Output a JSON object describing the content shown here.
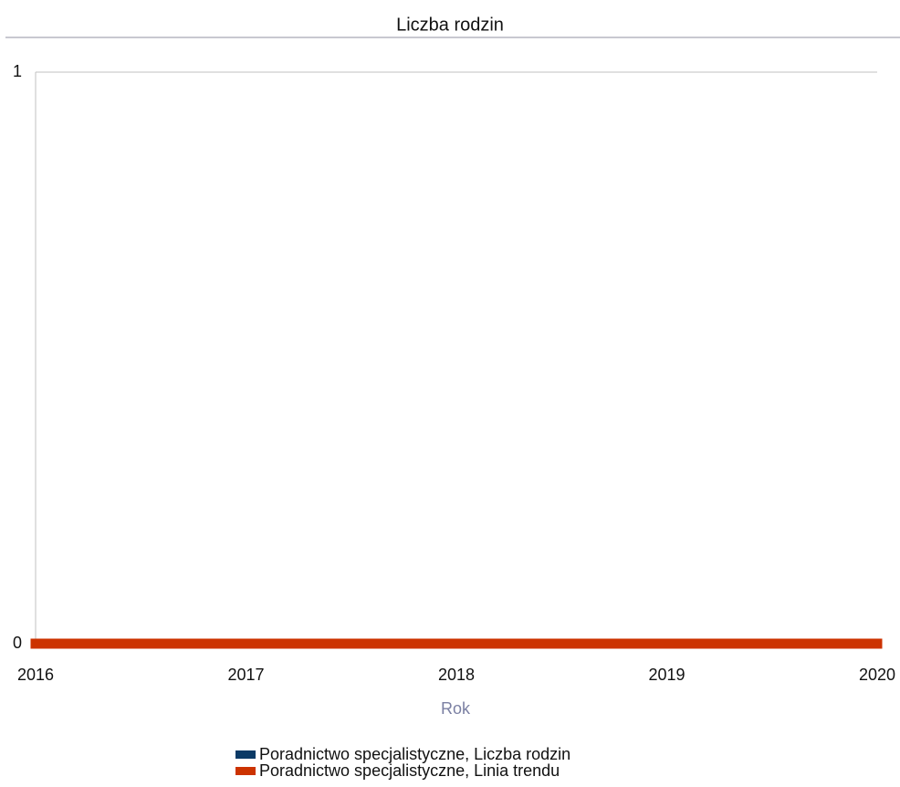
{
  "chart_data": {
    "type": "line",
    "title": "Liczba rodzin",
    "x_label": "Rok",
    "categories": [
      "2016",
      "2017",
      "2018",
      "2019",
      "2020"
    ],
    "series": [
      {
        "name": "Poradnictwo specjalistyczne, Liczba rodzin",
        "color": "#0b3a66",
        "values": [
          0,
          0,
          0,
          0,
          0
        ]
      },
      {
        "name": "Poradnictwo specjalistyczne, Linia trendu",
        "color": "#cc3300",
        "values": [
          0,
          0,
          0,
          0,
          0
        ]
      }
    ],
    "ylim": [
      0,
      1
    ],
    "yticks": [
      0,
      1
    ],
    "grid": true
  }
}
